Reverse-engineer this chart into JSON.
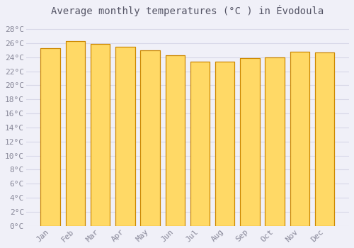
{
  "title": "Average monthly temperatures (°C ) in Évodoula",
  "months": [
    "Jan",
    "Feb",
    "Mar",
    "Apr",
    "May",
    "Jun",
    "Jul",
    "Aug",
    "Sep",
    "Oct",
    "Nov",
    "Dec"
  ],
  "values": [
    25.3,
    26.3,
    25.9,
    25.5,
    25.0,
    24.3,
    23.4,
    23.4,
    23.9,
    24.0,
    24.8,
    24.7
  ],
  "bar_color_light": "#FFD966",
  "bar_color_dark": "#E08000",
  "bar_edge_color": "#CC8800",
  "background_color": "#f0f0f8",
  "plot_bg_color": "#f0f0f8",
  "grid_color": "#d8d8e8",
  "yticks": [
    0,
    2,
    4,
    6,
    8,
    10,
    12,
    14,
    16,
    18,
    20,
    22,
    24,
    26,
    28
  ],
  "ylim": [
    0,
    29
  ],
  "title_fontsize": 10,
  "tick_fontsize": 8,
  "font_family": "monospace",
  "tick_color": "#888899"
}
